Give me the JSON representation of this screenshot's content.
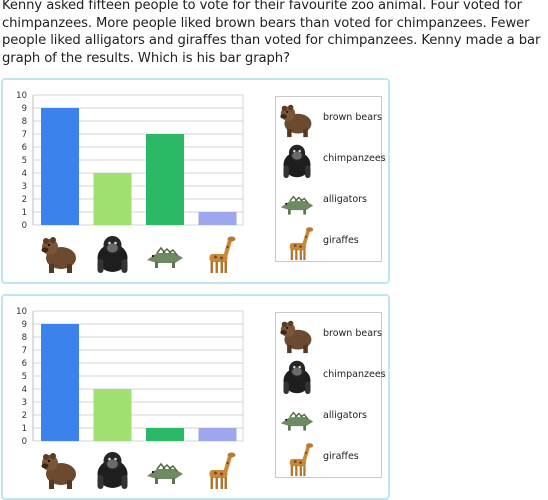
{
  "question": "Kenny asked fifteen people to vote for their favourite zoo animal. Four voted for chimpanzees. More people liked brown bears than voted for chimpanzees. Fewer people liked alligators and giraffes than voted for chimpanzees. Kenny made a bar graph of the results. Which is his bar graph?",
  "legend": [
    {
      "label": "brown bears",
      "icon": "brown-bear-icon"
    },
    {
      "label": "chimpanzees",
      "icon": "chimpanzee-icon"
    },
    {
      "label": "alligators",
      "icon": "alligator-icon"
    },
    {
      "label": "giraffes",
      "icon": "giraffe-icon"
    }
  ],
  "colors": {
    "bear": "#3b82ec",
    "chimp": "#a0e070",
    "alligator": "#2cb965",
    "giraffe": "#9da7ee",
    "card_border": "#bfe6ef"
  },
  "chart_data": [
    {
      "type": "bar",
      "categories": [
        "brown bears",
        "chimpanzees",
        "alligators",
        "giraffes"
      ],
      "values": [
        9,
        4,
        7,
        1
      ],
      "ylim": [
        0,
        10
      ],
      "yticks": [
        "0",
        "1",
        "2",
        "3",
        "4",
        "5",
        "6",
        "7",
        "8",
        "9",
        "10"
      ],
      "grid": true
    },
    {
      "type": "bar",
      "categories": [
        "brown bears",
        "chimpanzees",
        "alligators",
        "giraffes"
      ],
      "values": [
        9,
        4,
        1,
        1
      ],
      "ylim": [
        0,
        10
      ],
      "yticks": [
        "0",
        "1",
        "2",
        "3",
        "4",
        "5",
        "6",
        "7",
        "8",
        "9",
        "10"
      ],
      "grid": true
    }
  ]
}
